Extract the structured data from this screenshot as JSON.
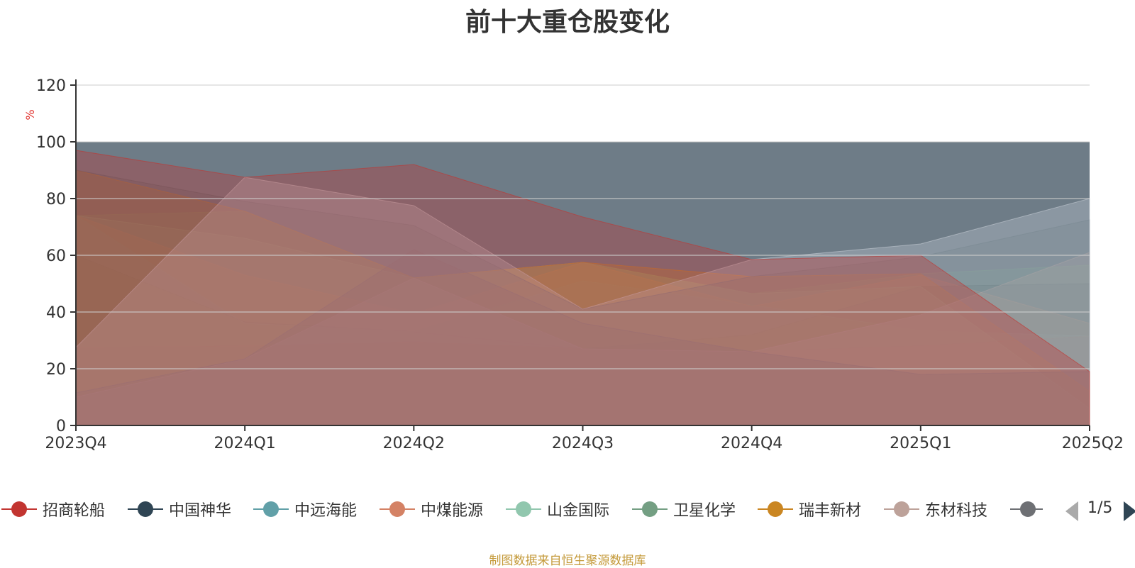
{
  "chart_data": {
    "type": "area",
    "title": "前十大重仓股变化",
    "ylabel": "%",
    "ylim": [
      0,
      120
    ],
    "yticks": [
      0,
      20,
      40,
      60,
      80,
      100,
      120
    ],
    "categories": [
      "2023Q4",
      "2024Q1",
      "2024Q2",
      "2024Q3",
      "2024Q4",
      "2025Q1",
      "2025Q2"
    ],
    "series": [
      {
        "name": "招商轮船",
        "color": "#c23531",
        "values": [
          27.5,
          28,
          29.5,
          27,
          26,
          28,
          31.5
        ]
      },
      {
        "name": "中国神华",
        "color": "#2f4554",
        "values": [
          60,
          36.5,
          33,
          27,
          32,
          49,
          50
        ]
      },
      {
        "name": "中远海能",
        "color": "#61a0a8",
        "values": [
          74,
          36,
          33,
          51,
          42.5,
          33.5,
          31.5
        ]
      },
      {
        "name": "中煤能源",
        "color": "#d48265",
        "values": [
          74,
          53,
          39.5,
          57.5,
          42,
          53,
          36
        ]
      },
      {
        "name": "山金国际",
        "color": "#91c7ae",
        "values": [
          74,
          66,
          52,
          57.5,
          46.5,
          49,
          6
        ]
      },
      {
        "name": "卫星化学",
        "color": "#749f83",
        "values": [
          74,
          75.5,
          52,
          57.5,
          46.5,
          53.5,
          56.5
        ]
      },
      {
        "name": "瑞丰新材",
        "color": "#ca8622",
        "values": [
          90,
          75.5,
          52,
          57.5,
          52.5,
          53.5,
          12
        ]
      },
      {
        "name": "东材科技",
        "color": "#bda29a",
        "values": [
          10,
          23.5,
          52,
          27,
          26,
          39,
          61
        ]
      },
      {
        "name": "",
        "color": "#6e7074",
        "values": [
          11.5,
          23.5,
          62,
          36,
          26,
          18,
          19
        ]
      },
      {
        "name": "",
        "color": "#546570",
        "values": [
          90,
          79,
          70.5,
          41,
          52.5,
          59.5,
          72.5
        ]
      },
      {
        "name": "",
        "color": "#c4ccd3",
        "values": [
          27.5,
          87.5,
          77.5,
          41,
          58.5,
          64,
          80
        ]
      },
      {
        "name": "",
        "color": "#c23531",
        "values": [
          97,
          87.5,
          92,
          73.5,
          58.5,
          60,
          19
        ]
      }
    ],
    "legend_visible": [
      "招商轮船",
      "中国神华",
      "中远海能",
      "中煤能源",
      "山金国际",
      "卫星化学",
      "瑞丰新材",
      "东材科技"
    ],
    "legend_placement": "bottom",
    "legend_page": "1/5",
    "grid": true,
    "source_note": "制图数据来自恒生聚源数据库"
  }
}
